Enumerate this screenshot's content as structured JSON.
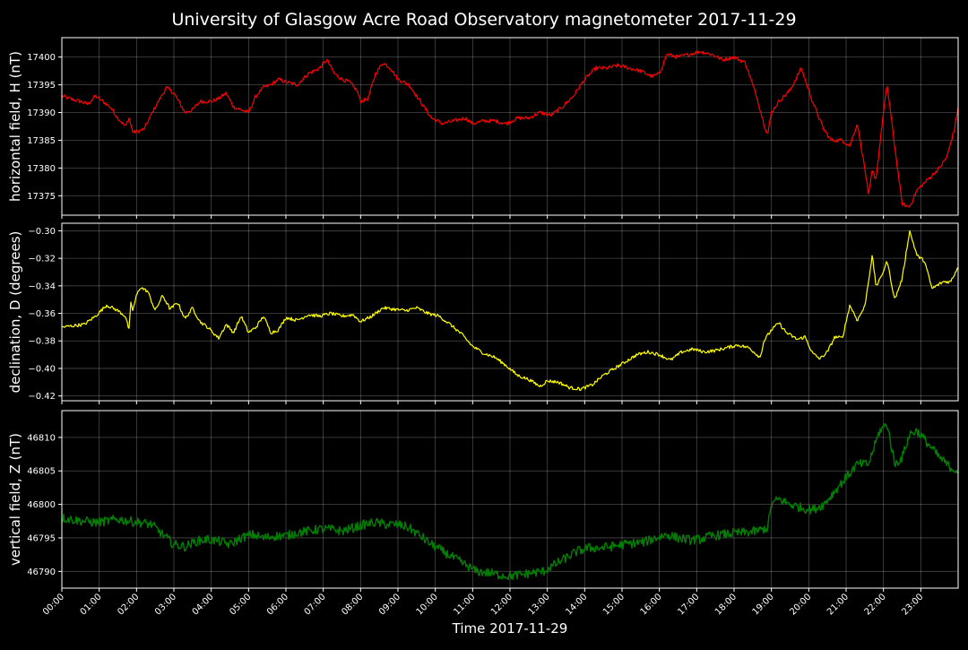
{
  "chart_data": {
    "type": "line",
    "title": "University of Glasgow Acre Road Observatory magnetometer 2017-11-29",
    "xlabel": "Time 2017-11-29",
    "x_unit": "hours",
    "xlim": [
      0,
      24
    ],
    "x_ticks": [
      0,
      1,
      2,
      3,
      4,
      5,
      6,
      7,
      8,
      9,
      10,
      11,
      12,
      13,
      14,
      15,
      16,
      17,
      18,
      19,
      20,
      21,
      22,
      23
    ],
    "x_tick_labels": [
      "00:00",
      "01:00",
      "02:00",
      "03:00",
      "04:00",
      "05:00",
      "06:00",
      "07:00",
      "08:00",
      "09:00",
      "10:00",
      "11:00",
      "12:00",
      "13:00",
      "14:00",
      "15:00",
      "16:00",
      "17:00",
      "18:00",
      "19:00",
      "20:00",
      "21:00",
      "22:00",
      "23:00"
    ],
    "grid": true,
    "background": "#000000",
    "panels": [
      {
        "ylabel": "horizontal field, H (nT)",
        "color": "#ff0000",
        "ylim": [
          17371.5,
          17403.5
        ],
        "y_ticks": [
          17375,
          17380,
          17385,
          17390,
          17395,
          17400
        ],
        "y_tick_labels": [
          "17375",
          "17380",
          "17385",
          "17390",
          "17395",
          "17400"
        ],
        "noise": 0.35,
        "x": [
          0,
          0.2,
          0.5,
          0.7,
          0.9,
          1.1,
          1.3,
          1.5,
          1.7,
          1.8,
          1.9,
          2.0,
          2.2,
          2.5,
          2.8,
          3.0,
          3.3,
          3.5,
          3.7,
          4.0,
          4.2,
          4.4,
          4.6,
          4.8,
          5.0,
          5.2,
          5.4,
          5.6,
          5.8,
          6.0,
          6.3,
          6.6,
          6.9,
          7.1,
          7.3,
          7.5,
          7.7,
          7.9,
          8.0,
          8.2,
          8.4,
          8.6,
          8.8,
          9.0,
          9.3,
          9.6,
          9.9,
          10.2,
          10.5,
          10.8,
          11.0,
          11.3,
          11.6,
          11.9,
          12.2,
          12.5,
          12.8,
          13.1,
          13.4,
          13.7,
          14.0,
          14.3,
          14.6,
          14.9,
          15.2,
          15.5,
          15.8,
          16.0,
          16.2,
          16.5,
          16.8,
          17.1,
          17.4,
          17.7,
          18.0,
          18.3,
          18.6,
          18.8,
          18.9,
          19.0,
          19.2,
          19.5,
          19.8,
          19.9,
          20.1,
          20.4,
          20.6,
          20.9,
          21.1,
          21.3,
          21.5,
          21.6,
          21.7,
          21.8,
          22.0,
          22.1,
          22.3,
          22.5,
          22.7,
          22.9,
          23.2,
          23.5,
          23.7,
          23.9,
          24.0
        ],
        "y": [
          17393,
          17392.5,
          17392,
          17391.5,
          17393,
          17392,
          17391,
          17389,
          17387.5,
          17389,
          17386.5,
          17386.5,
          17387,
          17391,
          17394.5,
          17393.5,
          17390,
          17390.5,
          17392,
          17392,
          17392.5,
          17393.5,
          17391,
          17390.5,
          17390,
          17393,
          17394.5,
          17395,
          17396,
          17395.5,
          17395,
          17397,
          17398,
          17399.5,
          17397,
          17396,
          17395.5,
          17394,
          17392,
          17392.5,
          17397,
          17399,
          17398,
          17396,
          17395,
          17392,
          17389,
          17388,
          17388.5,
          17389,
          17388,
          17388.5,
          17388.5,
          17388,
          17389,
          17389,
          17390,
          17389.5,
          17391,
          17393,
          17396,
          17398,
          17398,
          17398.5,
          17398,
          17397.5,
          17396.5,
          17397,
          17400.5,
          17400,
          17400.5,
          17401,
          17400.5,
          17399.5,
          17400,
          17399,
          17393,
          17388,
          17386,
          17390,
          17392,
          17394,
          17398,
          17396,
          17392,
          17387,
          17385,
          17385,
          17384,
          17388,
          17380,
          17375,
          17379.5,
          17378,
          17390,
          17395,
          17384,
          17373.5,
          17373,
          17376,
          17378,
          17380,
          17382,
          17387,
          17391
        ]
      },
      {
        "ylabel": "declination, D (degrees)",
        "color": "#ffff00",
        "ylim": [
          -0.4235,
          -0.2945
        ],
        "y_ticks": [
          -0.42,
          -0.4,
          -0.38,
          -0.36,
          -0.34,
          -0.32,
          -0.3
        ],
        "y_tick_labels": [
          "−0.42",
          "−0.40",
          "−0.38",
          "−0.36",
          "−0.34",
          "−0.32",
          "−0.30"
        ],
        "noise": 0.0012,
        "x": [
          0,
          0.3,
          0.6,
          0.9,
          1.2,
          1.5,
          1.7,
          1.8,
          1.85,
          1.9,
          2.0,
          2.1,
          2.3,
          2.5,
          2.7,
          2.9,
          3.1,
          3.3,
          3.5,
          3.7,
          3.9,
          4.2,
          4.4,
          4.6,
          4.8,
          5.0,
          5.2,
          5.4,
          5.6,
          5.8,
          6.0,
          6.3,
          6.6,
          6.9,
          7.2,
          7.5,
          7.8,
          8.0,
          8.3,
          8.6,
          8.9,
          9.2,
          9.5,
          9.8,
          10.1,
          10.4,
          10.7,
          11.0,
          11.3,
          11.6,
          11.9,
          12.2,
          12.5,
          12.8,
          13.0,
          13.3,
          13.6,
          13.9,
          14.2,
          14.5,
          14.8,
          15.1,
          15.4,
          15.7,
          16.0,
          16.3,
          16.6,
          16.9,
          17.2,
          17.5,
          17.8,
          18.1,
          18.4,
          18.7,
          18.8,
          19.0,
          19.2,
          19.4,
          19.7,
          19.9,
          20.1,
          20.3,
          20.5,
          20.7,
          20.9,
          21.1,
          21.3,
          21.5,
          21.7,
          21.8,
          21.9,
          22.1,
          22.3,
          22.5,
          22.7,
          22.9,
          23.1,
          23.3,
          23.6,
          23.8,
          24.0
        ],
        "y": [
          -0.37,
          -0.369,
          -0.368,
          -0.362,
          -0.354,
          -0.358,
          -0.362,
          -0.372,
          -0.352,
          -0.358,
          -0.347,
          -0.341,
          -0.344,
          -0.358,
          -0.347,
          -0.357,
          -0.352,
          -0.364,
          -0.356,
          -0.366,
          -0.37,
          -0.378,
          -0.368,
          -0.374,
          -0.362,
          -0.374,
          -0.37,
          -0.362,
          -0.374,
          -0.372,
          -0.363,
          -0.365,
          -0.361,
          -0.362,
          -0.36,
          -0.362,
          -0.361,
          -0.366,
          -0.362,
          -0.356,
          -0.357,
          -0.358,
          -0.356,
          -0.36,
          -0.362,
          -0.368,
          -0.375,
          -0.384,
          -0.389,
          -0.392,
          -0.398,
          -0.405,
          -0.408,
          -0.413,
          -0.409,
          -0.41,
          -0.414,
          -0.415,
          -0.412,
          -0.405,
          -0.4,
          -0.395,
          -0.39,
          -0.388,
          -0.39,
          -0.394,
          -0.388,
          -0.386,
          -0.388,
          -0.387,
          -0.385,
          -0.383,
          -0.385,
          -0.392,
          -0.38,
          -0.372,
          -0.367,
          -0.374,
          -0.379,
          -0.377,
          -0.389,
          -0.393,
          -0.388,
          -0.377,
          -0.378,
          -0.354,
          -0.365,
          -0.355,
          -0.318,
          -0.34,
          -0.336,
          -0.322,
          -0.35,
          -0.335,
          -0.3,
          -0.318,
          -0.322,
          -0.342,
          -0.337,
          -0.337,
          -0.326
        ]
      },
      {
        "ylabel": "vertical field, Z (nT)",
        "color": "#008000",
        "ylim": [
          46787.5,
          46814
        ],
        "y_ticks": [
          46790,
          46795,
          46800,
          46805,
          46810
        ],
        "y_tick_labels": [
          "46790",
          "46795",
          "46800",
          "46805",
          "46810"
        ],
        "noise": 0.7,
        "x": [
          0,
          0.3,
          0.6,
          0.9,
          1.2,
          1.5,
          1.8,
          2.1,
          2.4,
          2.7,
          3.0,
          3.3,
          3.6,
          3.9,
          4.2,
          4.5,
          4.8,
          5.1,
          5.4,
          5.7,
          6.0,
          6.3,
          6.6,
          6.9,
          7.2,
          7.5,
          7.8,
          8.1,
          8.4,
          8.7,
          9.0,
          9.3,
          9.6,
          9.9,
          10.2,
          10.5,
          10.8,
          11.1,
          11.4,
          11.7,
          12.0,
          12.3,
          12.6,
          12.9,
          13.2,
          13.5,
          13.8,
          14.1,
          14.4,
          14.7,
          15.0,
          15.3,
          15.6,
          15.9,
          16.2,
          16.5,
          16.8,
          17.1,
          17.4,
          17.7,
          18.0,
          18.3,
          18.6,
          18.9,
          19.0,
          19.2,
          19.5,
          19.8,
          20.1,
          20.4,
          20.7,
          21.0,
          21.3,
          21.6,
          21.9,
          22.1,
          22.3,
          22.5,
          22.7,
          22.9,
          23.2,
          23.5,
          23.8,
          24.0
        ],
        "y": [
          46798,
          46797.7,
          46797.5,
          46797.3,
          46797.5,
          46797.8,
          46797.5,
          46797.3,
          46797,
          46795.5,
          46794,
          46793.7,
          46794.5,
          46794.8,
          46794.5,
          46794,
          46795,
          46795.5,
          46795,
          46795.3,
          46795.3,
          46795.8,
          46796,
          46796.3,
          46796.3,
          46796,
          46796.5,
          46797,
          46797.3,
          46797,
          46797,
          46796.5,
          46795.3,
          46794,
          46793,
          46792,
          46791,
          46790,
          46789.8,
          46789.5,
          46789.3,
          46789.5,
          46789.8,
          46790,
          46791,
          46792,
          46793,
          46793.5,
          46793.5,
          46793.7,
          46794,
          46794.2,
          46794.4,
          46795,
          46795.5,
          46795,
          46794.7,
          46794.8,
          46795.3,
          46795.5,
          46795.7,
          46795.8,
          46796,
          46796.5,
          46800,
          46800.8,
          46800,
          46799.5,
          46799.2,
          46800,
          46802,
          46804,
          46806,
          46806,
          46811,
          46812,
          46806,
          46807,
          46810.5,
          46811,
          46809,
          46807,
          46805.5,
          46805
        ]
      }
    ]
  }
}
